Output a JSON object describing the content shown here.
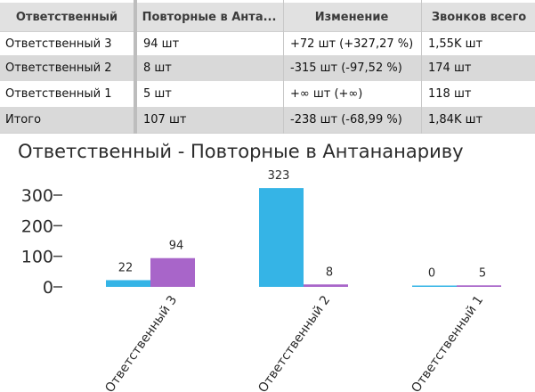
{
  "table": {
    "columns": [
      "Ответственный",
      "Повторные в Анта...",
      "Изменение",
      "Звонков всего"
    ],
    "rows": [
      {
        "name": "Ответственный 3",
        "repeat": "94  шт",
        "change": "+72 шт (+327,27 %)",
        "calls": "1,55K  шт"
      },
      {
        "name": "Ответственный 2",
        "repeat": "8  шт",
        "change": "-315 шт (-97,52 %)",
        "calls": "174  шт"
      },
      {
        "name": "Ответственный 1",
        "repeat": "5  шт",
        "change": "+∞ шт (+∞)",
        "calls": "118  шт"
      }
    ],
    "total": {
      "name": "Итого",
      "repeat": "107  шт",
      "change": "-238 шт (-68,99 %)",
      "calls": "1,84K  шт"
    }
  },
  "chart_data": {
    "type": "bar",
    "title": "Ответственный - Повторные в Антананариву",
    "categories": [
      "Ответственный 3",
      "Ответственный 2",
      "Ответственный 1"
    ],
    "series": [
      {
        "values": [
          22,
          323,
          0
        ],
        "color": "#35b4e6"
      },
      {
        "values": [
          94,
          8,
          5
        ],
        "color": "#a865c9"
      }
    ],
    "yticks": [
      "300",
      "200",
      "100",
      "0"
    ],
    "ylim": [
      0,
      330
    ]
  }
}
